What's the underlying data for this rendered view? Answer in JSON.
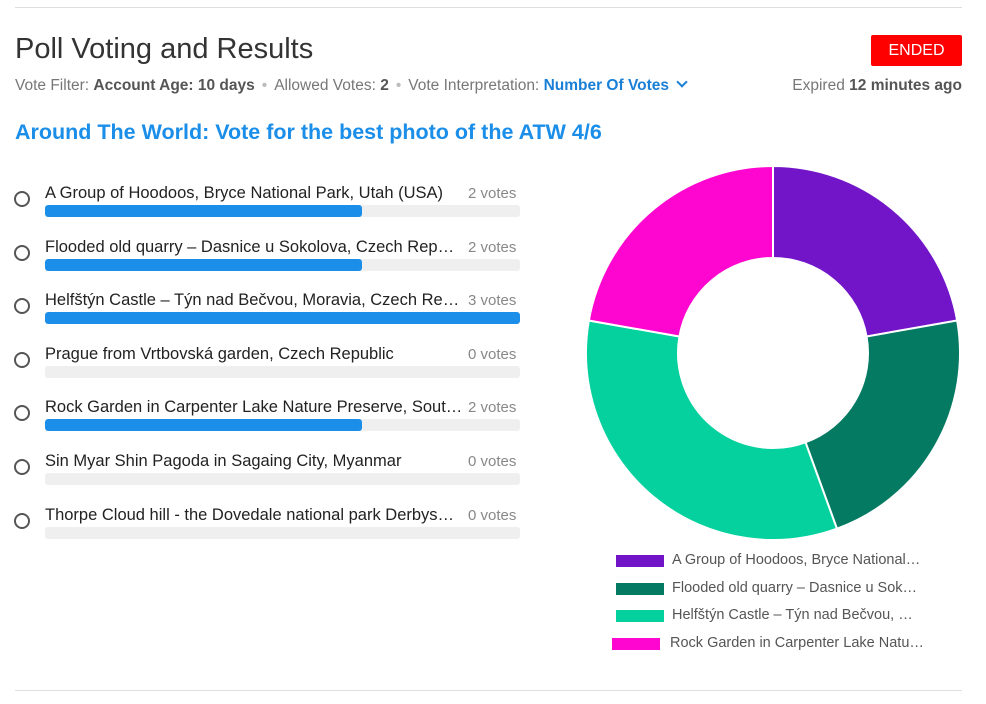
{
  "header": {
    "title": "Poll Voting and Results",
    "status_badge": "ENDED",
    "vote_filter_label": "Vote Filter:",
    "vote_filter_value": "Account Age: 10 days",
    "allowed_votes_label": "Allowed Votes:",
    "allowed_votes_value": "2",
    "interpretation_label": "Vote Interpretation:",
    "interpretation_value": "Number Of Votes",
    "expired_label": "Expired",
    "expired_value": "12 minutes ago"
  },
  "poll": {
    "question": "Around The World: Vote for the best photo of the ATW 4/6",
    "options": [
      {
        "label": "A Group of Hoodoos, Bryce National Park, Utah (USA)",
        "votes": 2,
        "votes_text": "2 votes"
      },
      {
        "label": "Flooded old quarry – Dasnice u Sokolova, Czech Republic",
        "votes": 2,
        "votes_text": "2 votes"
      },
      {
        "label": "Helfštýn Castle – Týn nad Bečvou, Moravia, Czech Republic",
        "votes": 3,
        "votes_text": "3 votes"
      },
      {
        "label": "Prague from Vrtbovská garden, Czech Republic",
        "votes": 0,
        "votes_text": "0 votes"
      },
      {
        "label": "Rock Garden in Carpenter Lake Nature Preserve, South Dakota",
        "votes": 2,
        "votes_text": "2 votes"
      },
      {
        "label": "Sin Myar Shin Pagoda in Sagaing City, Myanmar",
        "votes": 0,
        "votes_text": "0 votes"
      },
      {
        "label": "Thorpe Cloud hill - the Dovedale national park Derbyshire",
        "votes": 0,
        "votes_text": "0 votes"
      }
    ]
  },
  "chart_data": {
    "type": "pie",
    "donut": true,
    "categories": [
      "A Group of Hoodoos, Bryce National…",
      "Flooded old quarry – Dasnice u Sok…",
      "Helfštýn Castle – Týn nad Bečvou, …",
      "Rock Garden in Carpenter Lake Natu…"
    ],
    "values": [
      2,
      2,
      3,
      2
    ],
    "colors": [
      "#7215c9",
      "#047a63",
      "#05d19e",
      "#ff06d0"
    ],
    "legend_position": "bottom"
  },
  "colors": {
    "accent": "#1a8ee8",
    "badge": "#ff0000"
  }
}
